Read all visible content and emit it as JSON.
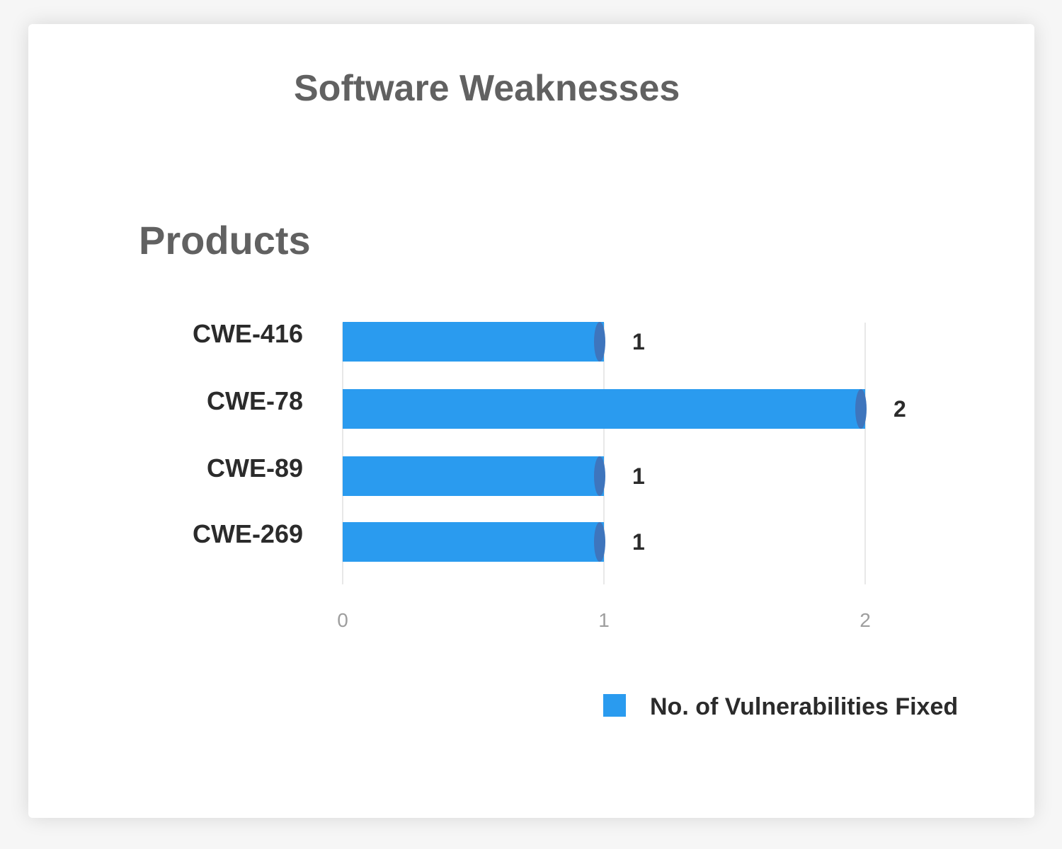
{
  "chart_data": {
    "type": "bar",
    "orientation": "horizontal",
    "title": "Software Weaknesses",
    "ylabel": "Products",
    "xlabel": "",
    "categories": [
      "CWE-416",
      "CWE-78",
      "CWE-89",
      "CWE-269"
    ],
    "series": [
      {
        "name": "No. of Vulnerabilities Fixed",
        "values": [
          1,
          2,
          1,
          1
        ],
        "color": "#2a9bef",
        "cap_color": "#3e75bd"
      }
    ],
    "xlim": [
      0,
      2
    ],
    "xticks": [
      0,
      1,
      2
    ],
    "grid": true,
    "data_labels": true,
    "legend_position": "bottom-right"
  }
}
